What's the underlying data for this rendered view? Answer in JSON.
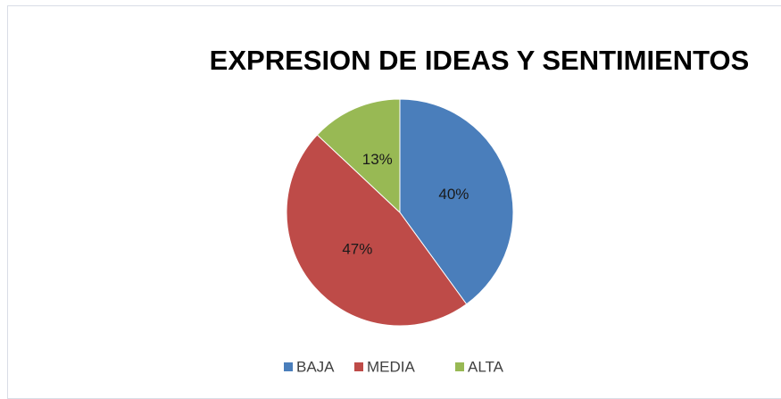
{
  "chart_data": {
    "type": "pie",
    "title": "EXPRESION DE IDEAS Y SENTIMIENTOS",
    "categories": [
      "BAJA",
      "MEDIA",
      "ALTA"
    ],
    "values": [
      40,
      47,
      13
    ],
    "value_labels": [
      "40%",
      "47%",
      "13%"
    ],
    "colors": [
      "#4a7ebb",
      "#be4b48",
      "#98b954"
    ],
    "legend": "bottom"
  }
}
